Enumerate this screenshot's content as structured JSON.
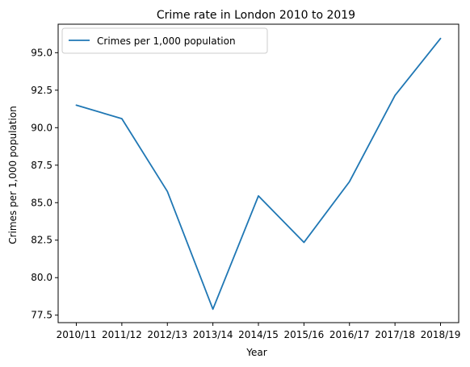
{
  "chart_data": {
    "type": "line",
    "title": "Crime rate in London 2010 to 2019",
    "xlabel": "Year",
    "ylabel": "Crimes per 1,000 population",
    "categories": [
      "2010/11",
      "2011/12",
      "2012/13",
      "2013/14",
      "2014/15",
      "2015/16",
      "2016/17",
      "2017/18",
      "2018/19"
    ],
    "series": [
      {
        "name": "Crimes per 1,000 population",
        "values": [
          91.5,
          90.6,
          85.75,
          77.9,
          85.45,
          82.35,
          86.4,
          92.15,
          95.95
        ],
        "color": "#1f77b4"
      }
    ],
    "ylim": [
      77.0,
      96.9
    ],
    "yticks": [
      "77.5",
      "80.0",
      "82.5",
      "85.0",
      "87.5",
      "90.0",
      "92.5",
      "95.0"
    ],
    "grid": false,
    "legend_position": "top-left"
  }
}
